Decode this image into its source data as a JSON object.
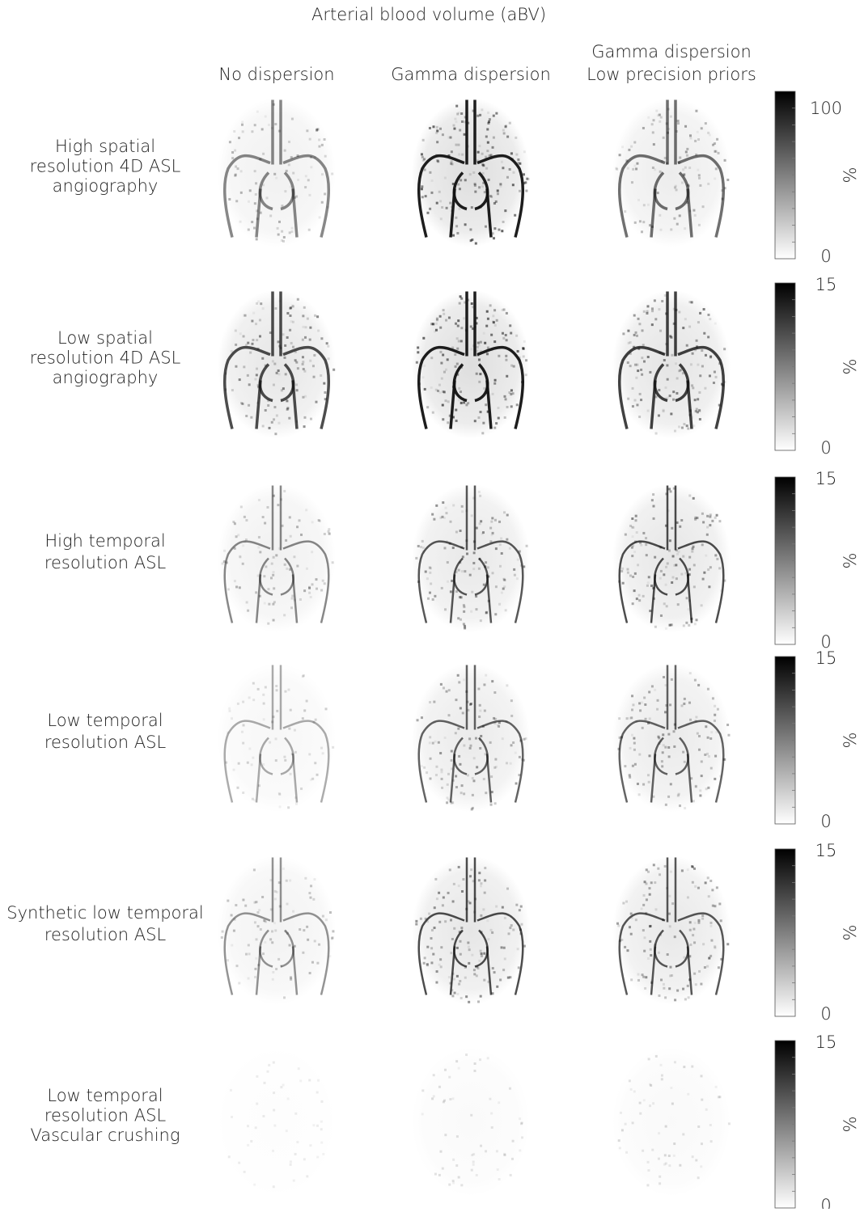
{
  "title": "Arterial blood volume (aBV)",
  "columns": [
    [
      "No dispersion"
    ],
    [
      "Gamma dispersion"
    ],
    [
      "Gamma dispersion",
      "Low precision priors"
    ]
  ],
  "rows": [
    {
      "label": [
        "High spatial",
        "resolution 4D ASL",
        "angiography"
      ],
      "colorbar": {
        "max": 100,
        "min": 0,
        "unit": "%"
      }
    },
    {
      "label": [
        "Low spatial",
        "resolution 4D ASL",
        "angiography"
      ],
      "colorbar": {
        "max": 15,
        "min": 0,
        "unit": "%"
      }
    },
    {
      "label": [
        "High temporal",
        "resolution ASL"
      ],
      "colorbar": {
        "max": 15,
        "min": 0,
        "unit": "%"
      }
    },
    {
      "label": [
        "Low temporal",
        "resolution ASL"
      ],
      "colorbar": {
        "max": 15,
        "min": 0,
        "unit": "%"
      }
    },
    {
      "label": [
        "Synthetic low temporal",
        "resolution ASL"
      ],
      "colorbar": {
        "max": 15,
        "min": 0,
        "unit": "%"
      }
    },
    {
      "label": [
        "Low temporal",
        "resolution ASL",
        "Vascular crushing"
      ],
      "colorbar": {
        "max": 15,
        "min": 0,
        "unit": "%"
      }
    }
  ]
}
